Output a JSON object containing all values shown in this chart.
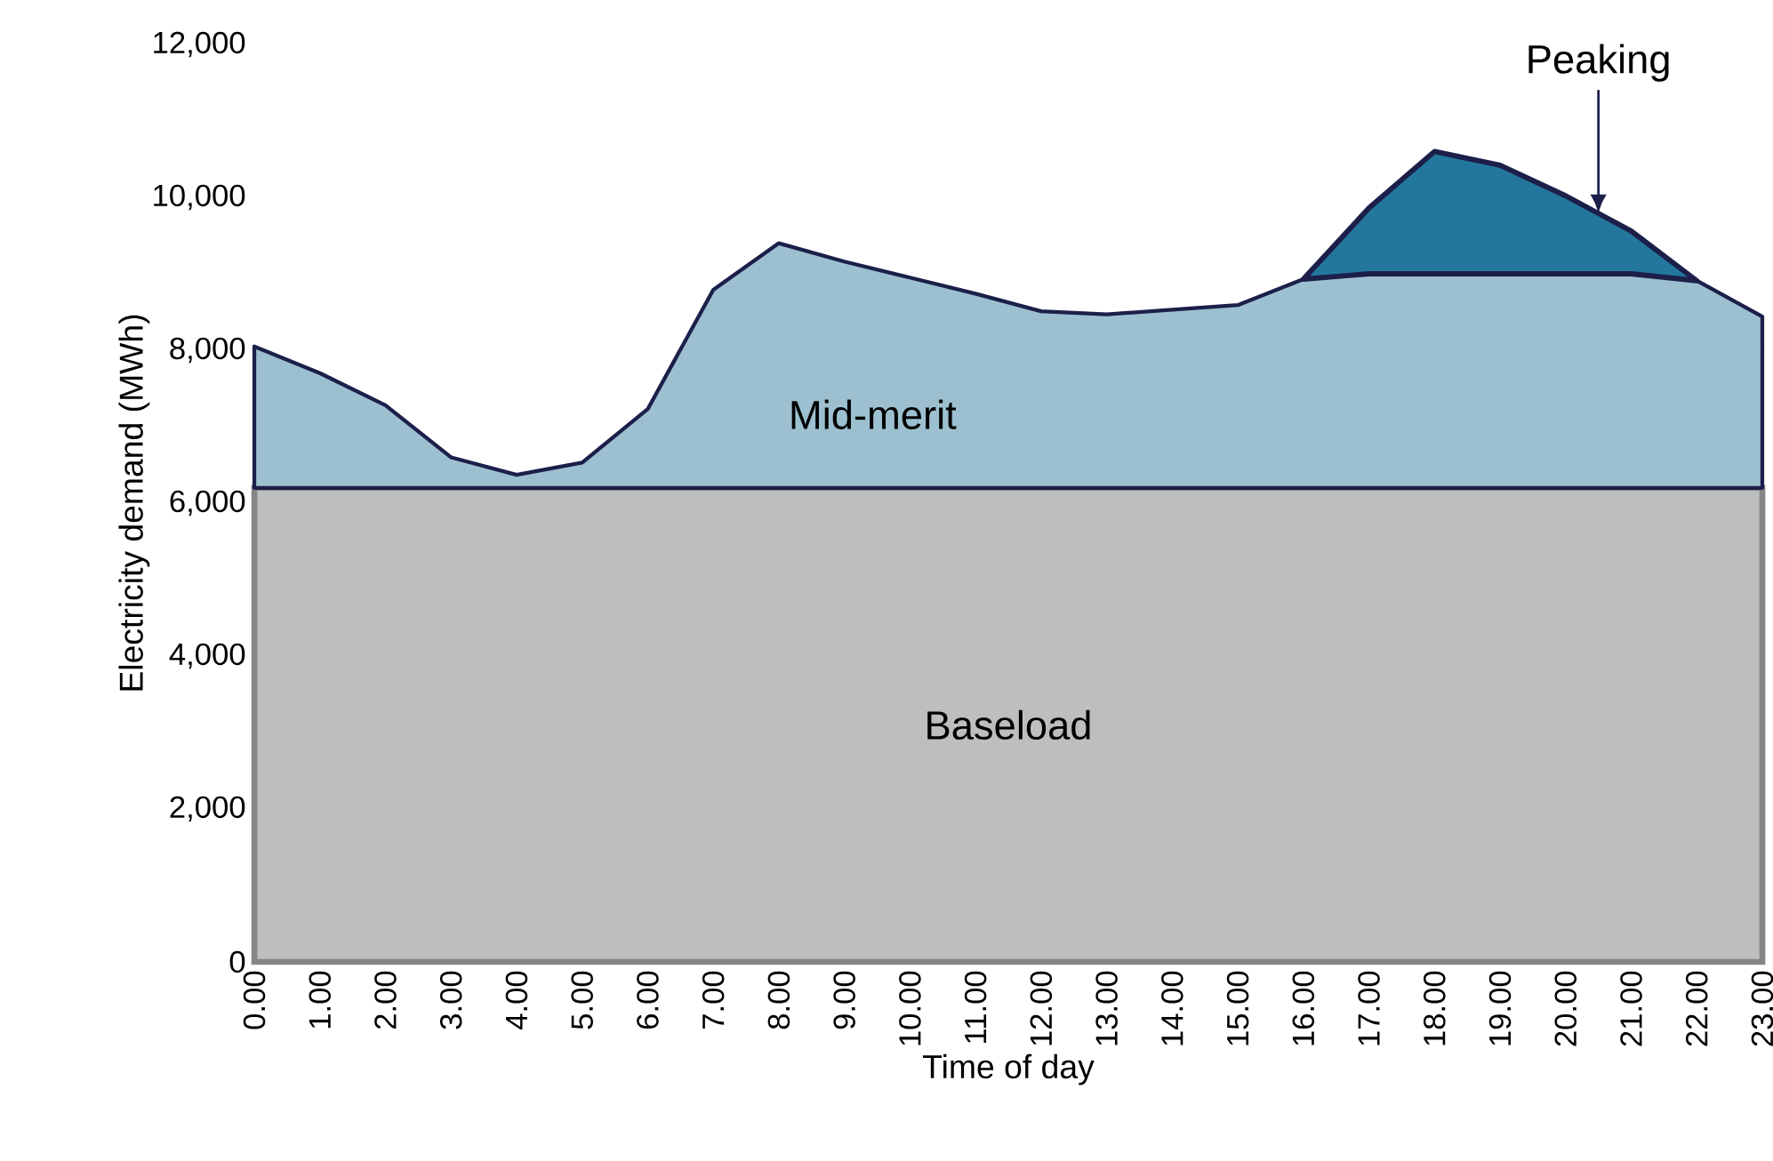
{
  "chart_data": {
    "type": "area",
    "stacked": true,
    "xlabel": "Time of day",
    "ylabel": "Electricity demand (MWh)",
    "categories": [
      "0.00",
      "1.00",
      "2.00",
      "3.00",
      "4.00",
      "5.00",
      "6.00",
      "7.00",
      "8.00",
      "9.00",
      "10.00",
      "11.00",
      "12.00",
      "13.00",
      "14.00",
      "15.00",
      "16.00",
      "17.00",
      "18.00",
      "19.00",
      "20.00",
      "21.00",
      "22.00",
      "23.00"
    ],
    "series": [
      {
        "name": "Baseload",
        "color": "#bcbec0",
        "values": [
          6200,
          6200,
          6200,
          6200,
          6200,
          6200,
          6200,
          6200,
          6200,
          6200,
          6200,
          6200,
          6200,
          6200,
          6200,
          6200,
          6200,
          6200,
          6200,
          6200,
          6200,
          6200,
          6200,
          6200
        ]
      },
      {
        "name": "Mid-merit",
        "color": "#9cc0cf",
        "values": [
          1850,
          1500,
          1080,
          400,
          170,
          330,
          1030,
          2590,
          3200,
          2960,
          2750,
          2540,
          2310,
          2270,
          2330,
          2390,
          2730,
          2800,
          2800,
          2800,
          2800,
          2800,
          2710,
          2240
        ]
      },
      {
        "name": "Peaking",
        "color": "#24779c",
        "values": [
          null,
          null,
          null,
          null,
          null,
          null,
          null,
          null,
          null,
          null,
          null,
          null,
          null,
          null,
          null,
          null,
          0,
          860,
          1600,
          1420,
          1020,
          560,
          0,
          null
        ]
      }
    ],
    "ylim": [
      0,
      12000
    ],
    "yticks": [
      {
        "value": 0,
        "label": "0"
      },
      {
        "value": 2000,
        "label": "2,000"
      },
      {
        "value": 4000,
        "label": "4,000"
      },
      {
        "value": 6000,
        "label": "6,000"
      },
      {
        "value": 8000,
        "label": "8,000"
      },
      {
        "value": 10000,
        "label": "10,000"
      },
      {
        "value": 12000,
        "label": "12,000"
      }
    ],
    "grid": false,
    "legend": false
  }
}
